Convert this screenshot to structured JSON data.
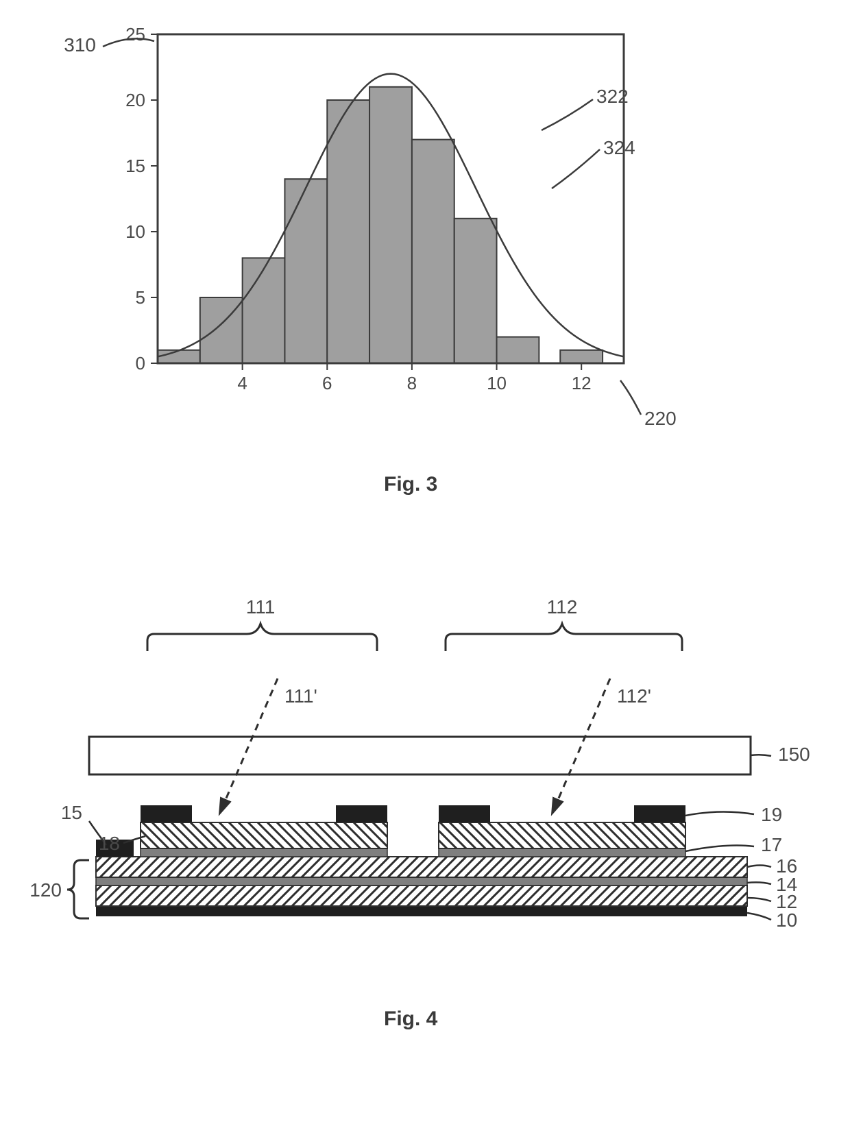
{
  "fig3": {
    "caption": "Fig. 3",
    "chart": {
      "type": "histogram_with_curve",
      "background_color": "#ffffff",
      "frame_color": "#3b3b3b",
      "frame_width": 3,
      "bar_fill": "#9f9f9f",
      "bar_stroke": "#3b3b3b",
      "bar_stroke_width": 2,
      "curve_color": "#3b3b3b",
      "curve_width": 2.5,
      "x": {
        "ticks": [
          4,
          6,
          8,
          10,
          12
        ],
        "min": 2,
        "max": 13
      },
      "y": {
        "ticks": [
          0,
          5,
          10,
          15,
          20,
          25
        ],
        "min": 0,
        "max": 25
      },
      "bars": [
        {
          "x": 2.5,
          "h": 1
        },
        {
          "x": 3.5,
          "h": 5
        },
        {
          "x": 4.5,
          "h": 8
        },
        {
          "x": 5.5,
          "h": 14
        },
        {
          "x": 6.5,
          "h": 20
        },
        {
          "x": 7.5,
          "h": 21
        },
        {
          "x": 8.5,
          "h": 17
        },
        {
          "x": 9.5,
          "h": 11
        },
        {
          "x": 10.5,
          "h": 2
        },
        {
          "x": 12,
          "h": 1
        }
      ],
      "curve": {
        "mean": 7.5,
        "sigma": 2.0,
        "peak": 22
      }
    },
    "refs": {
      "r310": "310",
      "r322": "322",
      "r324": "324",
      "r220": "220"
    }
  },
  "fig4": {
    "caption": "Fig. 4",
    "colors": {
      "outline": "#2e2e2e",
      "black_fill": "#1f1f1f",
      "grey_fill": "#7f7f7f",
      "hatch": "#2e2e2e",
      "bg": "#ffffff"
    },
    "refs": {
      "r111": "111",
      "r112": "112",
      "r111p": "111'",
      "r112p": "112'",
      "r150": "150",
      "r15": "15",
      "r18": "18",
      "r19": "19",
      "r17": "17",
      "r16": "16",
      "r14": "14",
      "r12": "12",
      "r10": "10",
      "r120": "120"
    }
  }
}
